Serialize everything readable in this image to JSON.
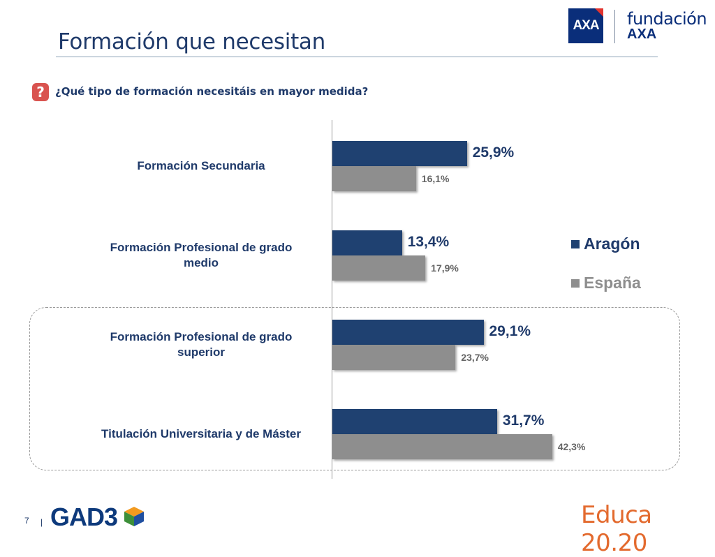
{
  "header": {
    "title": "Formación que necesitan",
    "logo_mark": "AXA",
    "logo_line1": "fundación",
    "logo_line2": "AXA"
  },
  "question": {
    "icon": "question-icon",
    "icon_glyph": "?",
    "text": "¿Qué tipo de formación necesitáis en mayor medida?"
  },
  "chart_data": {
    "type": "bar",
    "orientation": "horizontal",
    "categories": [
      "Formación Secundaria",
      "Formación Profesional de grado medio",
      "Formación Profesional de grado superior",
      "Titulación Universitaria y de Máster"
    ],
    "series": [
      {
        "name": "Aragón",
        "values": [
          25.9,
          13.4,
          29.1,
          31.7
        ],
        "labels": [
          "25,9%",
          "13,4%",
          "29,1%",
          "31,7%"
        ],
        "color": "#1f4171"
      },
      {
        "name": "España",
        "values": [
          16.1,
          17.9,
          23.7,
          42.3
        ],
        "labels": [
          "16,1%",
          "17,9%",
          "23,7%",
          "42,3%"
        ],
        "color": "#8e8e8e"
      }
    ],
    "xlim": [
      0,
      50
    ],
    "legend_position": "right",
    "grid": false,
    "highlighted_categories": [
      2,
      3
    ]
  },
  "footer": {
    "page_number": "7",
    "separator": "|",
    "brand_left": "GAD3",
    "brand_right": "Educa 20.20"
  }
}
